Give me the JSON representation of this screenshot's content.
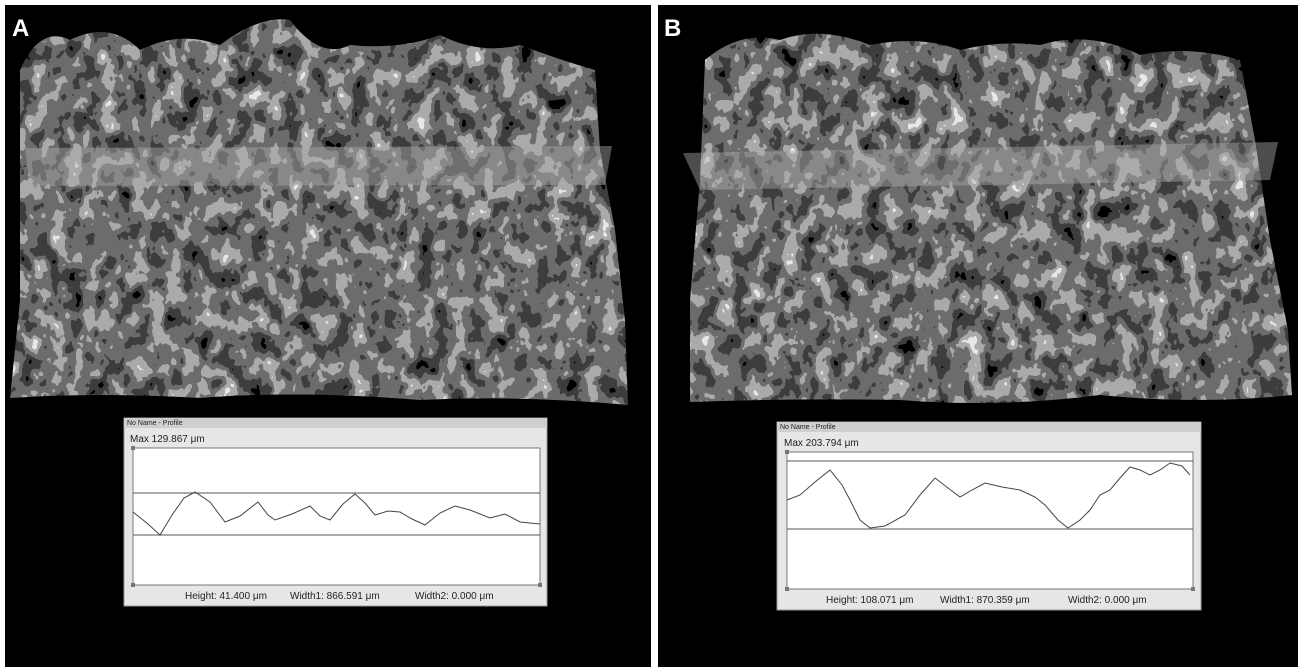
{
  "panels": [
    {
      "label": "A",
      "window_title": "No Name - Profile",
      "max": "Max  129.867 μm",
      "height": "Height: 41.400 μm",
      "width1": "Width1:  866.591 μm",
      "width2": "Width2:  0.000 μm"
    },
    {
      "label": "B",
      "window_title": "No Name - Profile",
      "max": "Max  203.794 μm",
      "height": "Height: 108.071 μm",
      "width1": "Width1:  870.359 μm",
      "width2": "Width2:  0.000 μm"
    }
  ]
}
